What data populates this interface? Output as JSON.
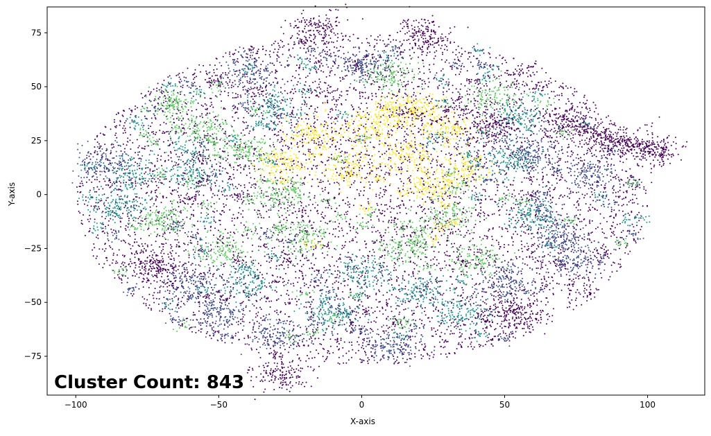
{
  "chart_data": {
    "type": "scatter",
    "title": "",
    "xlabel": "X-axis",
    "ylabel": "Y-axis",
    "xlim": [
      -110,
      120
    ],
    "ylim": [
      -93,
      87
    ],
    "x_ticks": [
      -100,
      -50,
      0,
      50,
      100
    ],
    "y_ticks": [
      -75,
      -50,
      -25,
      0,
      25,
      50,
      75
    ],
    "grid": false,
    "legend": "none",
    "annotation": "Cluster Count: 843",
    "colormap": "viridis",
    "colors": [
      "#440154",
      "#3b528b",
      "#21918c",
      "#5ec962",
      "#fde725"
    ],
    "approx_point_count": 40000,
    "cluster_count": 843,
    "clusters": [
      {
        "cx": -17,
        "cy": 28,
        "color_index": 4
      },
      {
        "cx": 2,
        "cy": 30,
        "color_index": 4
      },
      {
        "cx": 15,
        "cy": 18,
        "color_index": 4
      },
      {
        "cx": 25,
        "cy": 5,
        "color_index": 4
      },
      {
        "cx": 30,
        "cy": 30,
        "color_index": 4
      },
      {
        "cx": -28,
        "cy": 15,
        "color_index": 4
      },
      {
        "cx": 10,
        "cy": 38,
        "color_index": 4
      },
      {
        "cx": -5,
        "cy": 12,
        "color_index": 4
      },
      {
        "cx": 36,
        "cy": 12,
        "color_index": 4
      },
      {
        "cx": 20,
        "cy": 40,
        "color_index": 4
      },
      {
        "cx": -66,
        "cy": 42,
        "color_index": 3
      },
      {
        "cx": -55,
        "cy": 30,
        "color_index": 3
      },
      {
        "cx": -70,
        "cy": -12,
        "color_index": 3
      },
      {
        "cx": -30,
        "cy": 0,
        "color_index": 3
      },
      {
        "cx": 15,
        "cy": -25,
        "color_index": 3
      },
      {
        "cx": 45,
        "cy": 45,
        "color_index": 3
      },
      {
        "cx": 10,
        "cy": 55,
        "color_index": 3
      },
      {
        "cx": -20,
        "cy": -20,
        "color_index": 3
      },
      {
        "cx": 30,
        "cy": -10,
        "color_index": 3
      },
      {
        "cx": -40,
        "cy": 20,
        "color_index": 3
      },
      {
        "cx": -50,
        "cy": -25,
        "color_index": 3
      },
      {
        "cx": 40,
        "cy": -30,
        "color_index": 3
      },
      {
        "cx": -80,
        "cy": 10,
        "color_index": 2
      },
      {
        "cx": 55,
        "cy": 35,
        "color_index": 2
      },
      {
        "cx": -40,
        "cy": -40,
        "color_index": 2
      },
      {
        "cx": 20,
        "cy": -45,
        "color_index": 2
      },
      {
        "cx": -10,
        "cy": -55,
        "color_index": 2
      },
      {
        "cx": 50,
        "cy": 15,
        "color_index": 2
      },
      {
        "cx": -85,
        "cy": -5,
        "color_index": 2
      },
      {
        "cx": -30,
        "cy": 40,
        "color_index": 2
      },
      {
        "cx": 35,
        "cy": -55,
        "color_index": 2
      },
      {
        "cx": -60,
        "cy": 10,
        "color_index": 2
      },
      {
        "cx": 60,
        "cy": -10,
        "color_index": 2
      },
      {
        "cx": 0,
        "cy": -35,
        "color_index": 2
      },
      {
        "cx": -50,
        "cy": -55,
        "color_index": 1
      },
      {
        "cx": -30,
        "cy": -65,
        "color_index": 1
      },
      {
        "cx": 50,
        "cy": -40,
        "color_index": 1
      },
      {
        "cx": 70,
        "cy": -20,
        "color_index": 1
      },
      {
        "cx": 80,
        "cy": 10,
        "color_index": 1
      },
      {
        "cx": -90,
        "cy": 15,
        "color_index": 1
      },
      {
        "cx": -40,
        "cy": 55,
        "color_index": 1
      },
      {
        "cx": 0,
        "cy": 60,
        "color_index": 1
      },
      {
        "cx": 60,
        "cy": 20,
        "color_index": 1
      },
      {
        "cx": 10,
        "cy": -70,
        "color_index": 1
      },
      {
        "cx": -60,
        "cy": -40,
        "color_index": 1
      },
      {
        "cx": 75,
        "cy": -30,
        "color_index": 1
      },
      {
        "cx": 88,
        "cy": 25,
        "color_index": 0
      },
      {
        "cx": 102,
        "cy": 21,
        "color_index": 0
      },
      {
        "cx": -72,
        "cy": -32,
        "color_index": 0
      },
      {
        "cx": 53,
        "cy": -55,
        "color_index": 0
      },
      {
        "cx": -28,
        "cy": -84,
        "color_index": 0
      },
      {
        "cx": 72,
        "cy": 33,
        "color_index": 0
      },
      {
        "cx": -15,
        "cy": 77,
        "color_index": 0
      },
      {
        "cx": 22,
        "cy": 74,
        "color_index": 0
      },
      {
        "cx": 45,
        "cy": 32,
        "color_index": 0
      }
    ]
  }
}
